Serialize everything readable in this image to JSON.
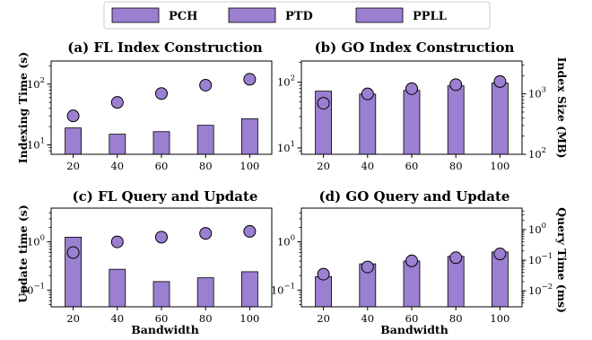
{
  "legend": {
    "entries": [
      {
        "label": "PCH",
        "color": "#9b7fd0"
      },
      {
        "label": "PTD",
        "color": "#9b7fd0"
      },
      {
        "label": "PPLL",
        "color": "#9b7fd0"
      }
    ]
  },
  "colors": {
    "bar": "#9b7fd0",
    "marker": "#9b7fd0",
    "edge": "#000000"
  },
  "chart_data": [
    {
      "type": "bar",
      "title": "(a) FL Index Construction",
      "categories": [
        "20",
        "40",
        "60",
        "80",
        "100"
      ],
      "y_scale": "log",
      "ylabel": "Indexing Time (s)",
      "ylim": [
        7,
        240
      ],
      "yticks": [
        {
          "base": "10",
          "exp": "1",
          "value": 10
        },
        {
          "base": "10",
          "exp": "2",
          "value": 100
        }
      ],
      "series": [
        {
          "values": [
            19,
            15,
            16.5,
            21,
            27
          ]
        },
        {
          "values": [
            30,
            50,
            70,
            96,
            120
          ],
          "marker": "circle"
        }
      ]
    },
    {
      "type": "bar",
      "title": "(b) GO Index Construction",
      "categories": [
        "20",
        "40",
        "60",
        "80",
        "100"
      ],
      "y_scale": "log",
      "ylim": [
        8,
        210
      ],
      "yticks": [
        {
          "base": "10",
          "exp": "1",
          "value": 10
        },
        {
          "base": "10",
          "exp": "2",
          "value": 100
        }
      ],
      "y2label": "Index Size (MB)",
      "y2_scale": "log",
      "y2lim": [
        100,
        3500
      ],
      "y2ticks": [
        {
          "base": "10",
          "exp": "2",
          "value": 100
        },
        {
          "base": "10",
          "exp": "3",
          "value": 1000
        }
      ],
      "series": [
        {
          "values": [
            73,
            66,
            75,
            88,
            97
          ]
        },
        {
          "values": [
            700,
            1000,
            1220,
            1420,
            1600
          ],
          "marker": "circle",
          "axis": "right"
        }
      ]
    },
    {
      "type": "bar",
      "title": "(c) FL Query and Update",
      "categories": [
        "20",
        "40",
        "60",
        "80",
        "100"
      ],
      "y_scale": "log",
      "ylabel": "Update time (s)",
      "ylim": [
        0.045,
        5
      ],
      "yticks": [
        {
          "base": "10",
          "exp": "−1",
          "value": 0.1
        },
        {
          "base": "10",
          "exp": "0",
          "value": 1
        }
      ],
      "series": [
        {
          "values": [
            1.25,
            0.27,
            0.15,
            0.18,
            0.24
          ]
        },
        {
          "values": [
            0.6,
            1.0,
            1.25,
            1.5,
            1.65
          ],
          "marker": "circle"
        }
      ]
    },
    {
      "type": "bar",
      "title": "(d) GO Query and Update",
      "categories": [
        "20",
        "40",
        "60",
        "80",
        "100"
      ],
      "xlabel": "Bandwidth",
      "y_scale": "log",
      "ylim": [
        0.045,
        5
      ],
      "yticks": [
        {
          "base": "10",
          "exp": "−1",
          "value": 0.1
        },
        {
          "base": "10",
          "exp": "0",
          "value": 1
        }
      ],
      "y2label": "Query Time (ms)",
      "y2_scale": "log",
      "y2lim": [
        0.003,
        5
      ],
      "y2ticks": [
        {
          "base": "10",
          "exp": "−2",
          "value": 0.01
        },
        {
          "base": "10",
          "exp": "−1",
          "value": 0.1
        },
        {
          "base": "10",
          "exp": "0",
          "value": 1
        }
      ],
      "series": [
        {
          "values": [
            0.19,
            0.35,
            0.4,
            0.5,
            0.62
          ]
        },
        {
          "values": [
            0.035,
            0.06,
            0.095,
            0.12,
            0.16
          ],
          "marker": "circle",
          "axis": "right"
        }
      ]
    }
  ],
  "bottom_left_xlabel": "Bandwidth"
}
